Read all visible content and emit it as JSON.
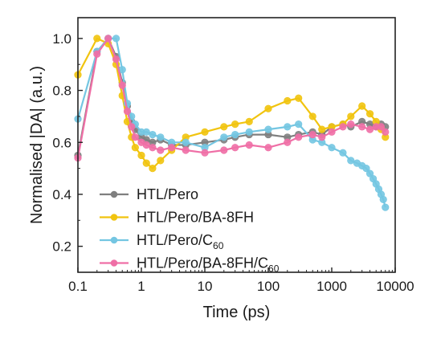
{
  "chart_data": {
    "type": "line",
    "xlabel": "Time (ps)",
    "ylabel": "Normalised |DA| (a.u.)",
    "xscale": "log",
    "xlim": [
      0.1,
      10000
    ],
    "ylim": [
      0.1,
      1.08
    ],
    "xticks": [
      "0.1",
      "1",
      "10",
      "100",
      "1000",
      "10000"
    ],
    "yticks": [
      "0.2",
      "0.4",
      "0.6",
      "0.8",
      "1.0"
    ],
    "grid": false,
    "legend_position": "bottom-left",
    "series": [
      {
        "name": "HTL/Pero",
        "color": "#7f7f7f",
        "x": [
          0.1,
          0.2,
          0.3,
          0.4,
          0.5,
          0.6,
          0.7,
          0.8,
          1.0,
          1.2,
          1.5,
          2,
          3,
          5,
          10,
          20,
          30,
          50,
          100,
          200,
          300,
          500,
          700,
          1000,
          1500,
          2000,
          3000,
          4000,
          5000,
          6000,
          7000
        ],
        "y": [
          0.55,
          0.95,
          1.0,
          0.93,
          0.83,
          0.74,
          0.68,
          0.65,
          0.62,
          0.61,
          0.6,
          0.61,
          0.59,
          0.59,
          0.6,
          0.61,
          0.62,
          0.63,
          0.63,
          0.62,
          0.63,
          0.64,
          0.63,
          0.66,
          0.67,
          0.66,
          0.68,
          0.67,
          0.66,
          0.67,
          0.66
        ]
      },
      {
        "name": "HTL/Pero/BA-8FH",
        "color": "#f1c40f",
        "x": [
          0.1,
          0.2,
          0.3,
          0.4,
          0.5,
          0.6,
          0.7,
          0.8,
          1.0,
          1.2,
          1.5,
          2,
          3,
          5,
          10,
          20,
          30,
          50,
          100,
          200,
          300,
          500,
          700,
          1000,
          1500,
          2000,
          3000,
          4000,
          5000,
          6000,
          7000
        ],
        "y": [
          0.86,
          1.0,
          0.98,
          0.9,
          0.78,
          0.68,
          0.62,
          0.58,
          0.55,
          0.52,
          0.5,
          0.53,
          0.57,
          0.62,
          0.64,
          0.66,
          0.67,
          0.68,
          0.73,
          0.76,
          0.77,
          0.7,
          0.65,
          0.66,
          0.67,
          0.7,
          0.74,
          0.71,
          0.68,
          0.65,
          0.62
        ]
      },
      {
        "name": "HTL/Pero/C",
        "name_subscript": "60",
        "color": "#74c6e2",
        "x": [
          0.1,
          0.2,
          0.3,
          0.4,
          0.5,
          0.6,
          0.7,
          0.8,
          1.0,
          1.2,
          1.5,
          2,
          3,
          5,
          10,
          20,
          30,
          50,
          100,
          200,
          300,
          500,
          700,
          1000,
          1500,
          2000,
          2500,
          3000,
          3500,
          4000,
          4500,
          5000,
          5500,
          6000,
          6500,
          7000
        ],
        "y": [
          0.69,
          0.95,
          1.0,
          1.0,
          0.88,
          0.75,
          0.7,
          0.67,
          0.64,
          0.64,
          0.63,
          0.62,
          0.6,
          0.6,
          0.58,
          0.62,
          0.63,
          0.64,
          0.65,
          0.66,
          0.67,
          0.61,
          0.6,
          0.58,
          0.56,
          0.53,
          0.52,
          0.51,
          0.5,
          0.48,
          0.46,
          0.44,
          0.42,
          0.4,
          0.38,
          0.35
        ]
      },
      {
        "name": "HTL/Pero/BA-8FH/C",
        "name_subscript": "60",
        "color": "#ef6fa6",
        "x": [
          0.1,
          0.2,
          0.3,
          0.4,
          0.5,
          0.6,
          0.7,
          0.8,
          1.0,
          1.2,
          1.5,
          2,
          3,
          5,
          10,
          20,
          30,
          50,
          100,
          200,
          300,
          500,
          700,
          1000,
          1500,
          2000,
          3000,
          4000,
          5000,
          6000,
          7000
        ],
        "y": [
          0.54,
          0.94,
          1.0,
          0.92,
          0.82,
          0.72,
          0.66,
          0.62,
          0.6,
          0.59,
          0.58,
          0.57,
          0.58,
          0.57,
          0.56,
          0.57,
          0.58,
          0.59,
          0.58,
          0.6,
          0.62,
          0.63,
          0.62,
          0.64,
          0.66,
          0.67,
          0.66,
          0.65,
          0.66,
          0.66,
          0.64
        ]
      }
    ]
  }
}
